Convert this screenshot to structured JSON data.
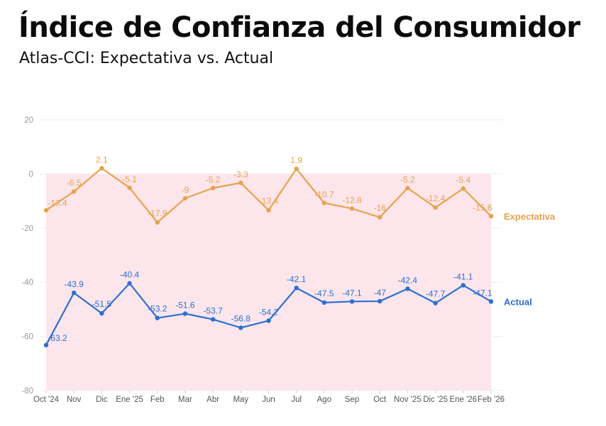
{
  "header": {
    "title": "Índice de Confianza del Consumidor",
    "subtitle": "Atlas-CCI: Expectativa vs. Actual"
  },
  "chart_data": {
    "type": "line",
    "title": "Índice de Confianza del Consumidor",
    "subtitle": "Atlas-CCI: Expectativa vs. Actual",
    "xlabel": "",
    "ylabel": "",
    "ylim": [
      -80,
      20
    ],
    "yticks": [
      20,
      0,
      -20,
      -40,
      -60,
      -80
    ],
    "grid": true,
    "negative_region_shaded": true,
    "shade_color": "#fce6ec",
    "legend_placement": "right-inline",
    "x": [
      "Oct '24",
      "Nov",
      "Dic",
      "Ene '25",
      "Feb",
      "Mar",
      "Abr",
      "May",
      "Jun",
      "Jul",
      "Ago",
      "Sep",
      "Oct",
      "Nov '25",
      "Dic '25",
      "Ene '26",
      "Feb '26"
    ],
    "series": [
      {
        "name": "Expectativa",
        "color": "#e8a24a",
        "values": [
          -13.4,
          -6.5,
          2.1,
          -5.1,
          -17.9,
          -9,
          -5.2,
          -3.3,
          -13.4,
          1.9,
          -10.7,
          -12.8,
          -16,
          -5.2,
          -12.4,
          -5.4,
          -15.6
        ]
      },
      {
        "name": "Actual",
        "color": "#2d6fd2",
        "values": [
          -63.2,
          -43.9,
          -51.5,
          -40.4,
          -53.2,
          -51.6,
          -53.7,
          -56.8,
          -54.2,
          -42.1,
          -47.5,
          -47.1,
          -47,
          -42.4,
          -47.7,
          -41.1,
          -47.1
        ]
      }
    ]
  }
}
